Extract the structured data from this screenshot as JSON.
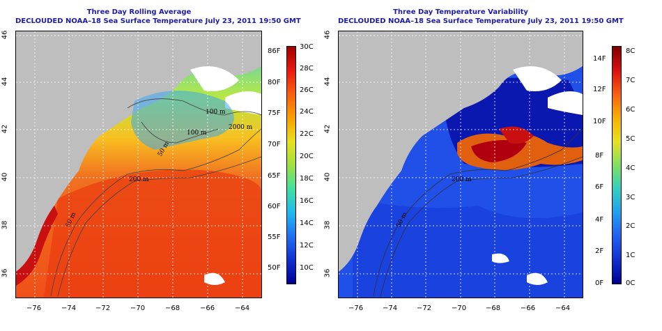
{
  "left_panel": {
    "title_line1": "Three Day Rolling Average",
    "title_line2": "DECLOUDED NOAA–18 Sea Surface Temperature July 23, 2011 19:50 GMT",
    "contour_labels": [
      "100 m",
      "100 m",
      "2000 m",
      "50 m",
      "200 m",
      "50 m"
    ],
    "colorbar_f": [
      "86F",
      "80F",
      "75F",
      "70F",
      "65F",
      "60F",
      "55F",
      "50F"
    ],
    "colorbar_c": [
      "30C",
      "28C",
      "26C",
      "24C",
      "22C",
      "20C",
      "18C",
      "16C",
      "14C",
      "12C",
      "10C"
    ]
  },
  "right_panel": {
    "title_line1": "Three Day Temperature Variability",
    "title_line2": "DECLOUDED NOAA–18 Sea Surface Temperature July 23, 2011 19:50 GMT",
    "contour_labels": [
      "200 m",
      "50 m"
    ],
    "colorbar_f": [
      "14F",
      "12F",
      "10F",
      "8F",
      "6F",
      "4F",
      "2F",
      "0F"
    ],
    "colorbar_c": [
      "8C",
      "7C",
      "6C",
      "5C",
      "4C",
      "3C",
      "2C",
      "1C",
      "0C"
    ]
  },
  "x_ticks": [
    "−76",
    "−74",
    "−72",
    "−70",
    "−68",
    "−66",
    "−64"
  ],
  "y_ticks": [
    "46",
    "44",
    "42",
    "40",
    "38",
    "36"
  ],
  "colors": {
    "title": "#1b1baa",
    "land": "#bebebe",
    "cloud": "#ffffff"
  }
}
